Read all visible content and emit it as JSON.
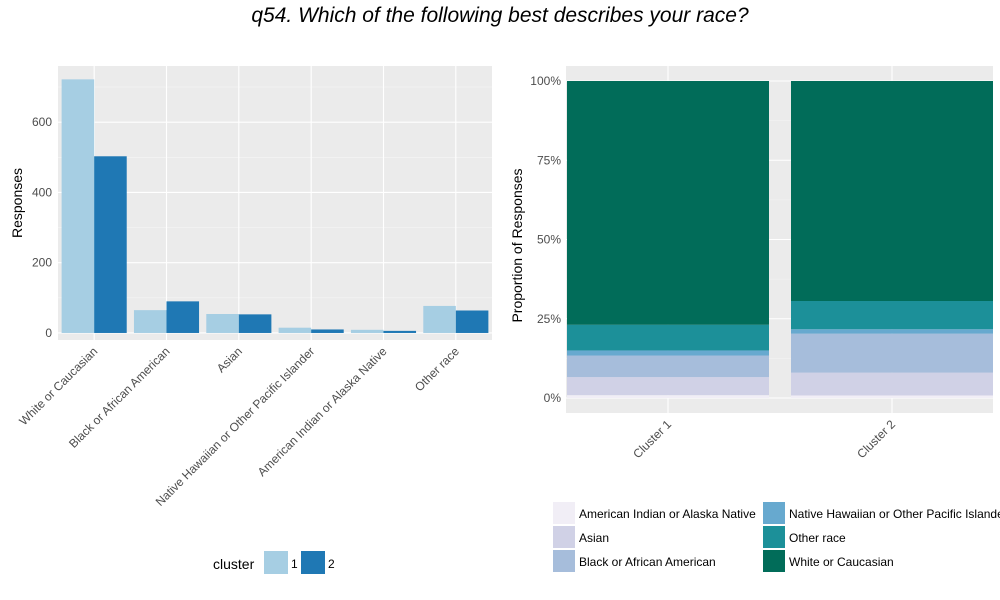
{
  "title": "q54. Which of the following best describes your race?",
  "chart_data": [
    {
      "type": "bar",
      "ylabel": "Responses",
      "ylim": [
        0,
        760
      ],
      "yticks": [
        0,
        200,
        400,
        600
      ],
      "categories": [
        "White or Caucasian",
        "Black or African American",
        "Asian",
        "Native Hawaiian or Other Pacific Islander",
        "American Indian or Alaska Native",
        "Other race"
      ],
      "series": [
        {
          "name": "1",
          "color": "#a6cee3",
          "values": [
            722,
            65,
            54,
            15,
            9,
            77
          ]
        },
        {
          "name": "2",
          "color": "#1f78b4",
          "values": [
            503,
            90,
            53,
            10,
            6,
            64
          ]
        }
      ],
      "legend_title": "cluster",
      "legend_position": "bottom",
      "grid": true
    },
    {
      "type": "bar",
      "stacked": true,
      "ylabel": "Proportion of Responses",
      "ylim": [
        0,
        1
      ],
      "yticks": [
        0,
        0.25,
        0.5,
        0.75,
        1
      ],
      "ytick_labels": [
        "0%",
        "25%",
        "50%",
        "75%",
        "100%"
      ],
      "categories": [
        "Cluster 1",
        "Cluster 2"
      ],
      "series": [
        {
          "name": "American Indian or Alaska Native",
          "color": "#f1eef6",
          "values": [
            0.009,
            0.008
          ]
        },
        {
          "name": "Asian",
          "color": "#d0d1e6",
          "values": [
            0.057,
            0.072
          ]
        },
        {
          "name": "Black or African American",
          "color": "#a6bddb",
          "values": [
            0.068,
            0.123
          ]
        },
        {
          "name": "Native Hawaiian or Other Pacific Islander",
          "color": "#67a9cf",
          "values": [
            0.016,
            0.014
          ]
        },
        {
          "name": "Other race",
          "color": "#1c9099",
          "values": [
            0.081,
            0.089
          ]
        },
        {
          "name": "White or Caucasian",
          "color": "#016c59",
          "values": [
            0.769,
            0.694
          ]
        }
      ],
      "legend_position": "bottom",
      "grid": true
    }
  ]
}
